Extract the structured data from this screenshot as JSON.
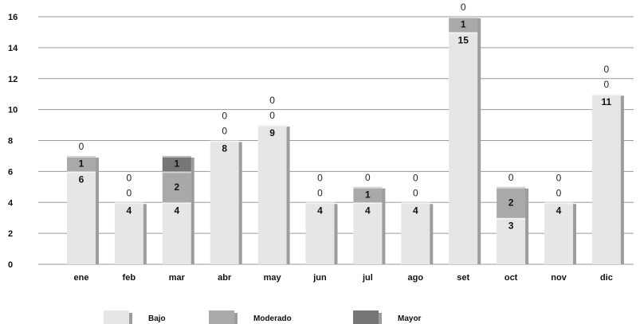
{
  "chart_data": {
    "type": "bar",
    "stacked": true,
    "categories": [
      "ene",
      "feb",
      "mar",
      "abr",
      "may",
      "jun",
      "jul",
      "ago",
      "set",
      "oct",
      "nov",
      "dic"
    ],
    "series": [
      {
        "name": "Bajo",
        "color": "#e6e6e6",
        "values": [
          6,
          4,
          4,
          8,
          9,
          4,
          4,
          4,
          15,
          3,
          4,
          11
        ]
      },
      {
        "name": "Moderado",
        "color": "#a9a9a9",
        "values": [
          1,
          0,
          2,
          0,
          0,
          0,
          1,
          0,
          1,
          2,
          0,
          0
        ]
      },
      {
        "name": "Mayor",
        "color": "#767676",
        "values": [
          0,
          0,
          1,
          0,
          0,
          0,
          0,
          0,
          0,
          0,
          0,
          0
        ]
      }
    ],
    "yticks": [
      0,
      2,
      4,
      6,
      8,
      10,
      12,
      14,
      16
    ],
    "ylim": [
      0,
      16
    ],
    "grid": true,
    "legend_position": "bottom",
    "title": "",
    "xlabel": "",
    "ylabel": ""
  }
}
